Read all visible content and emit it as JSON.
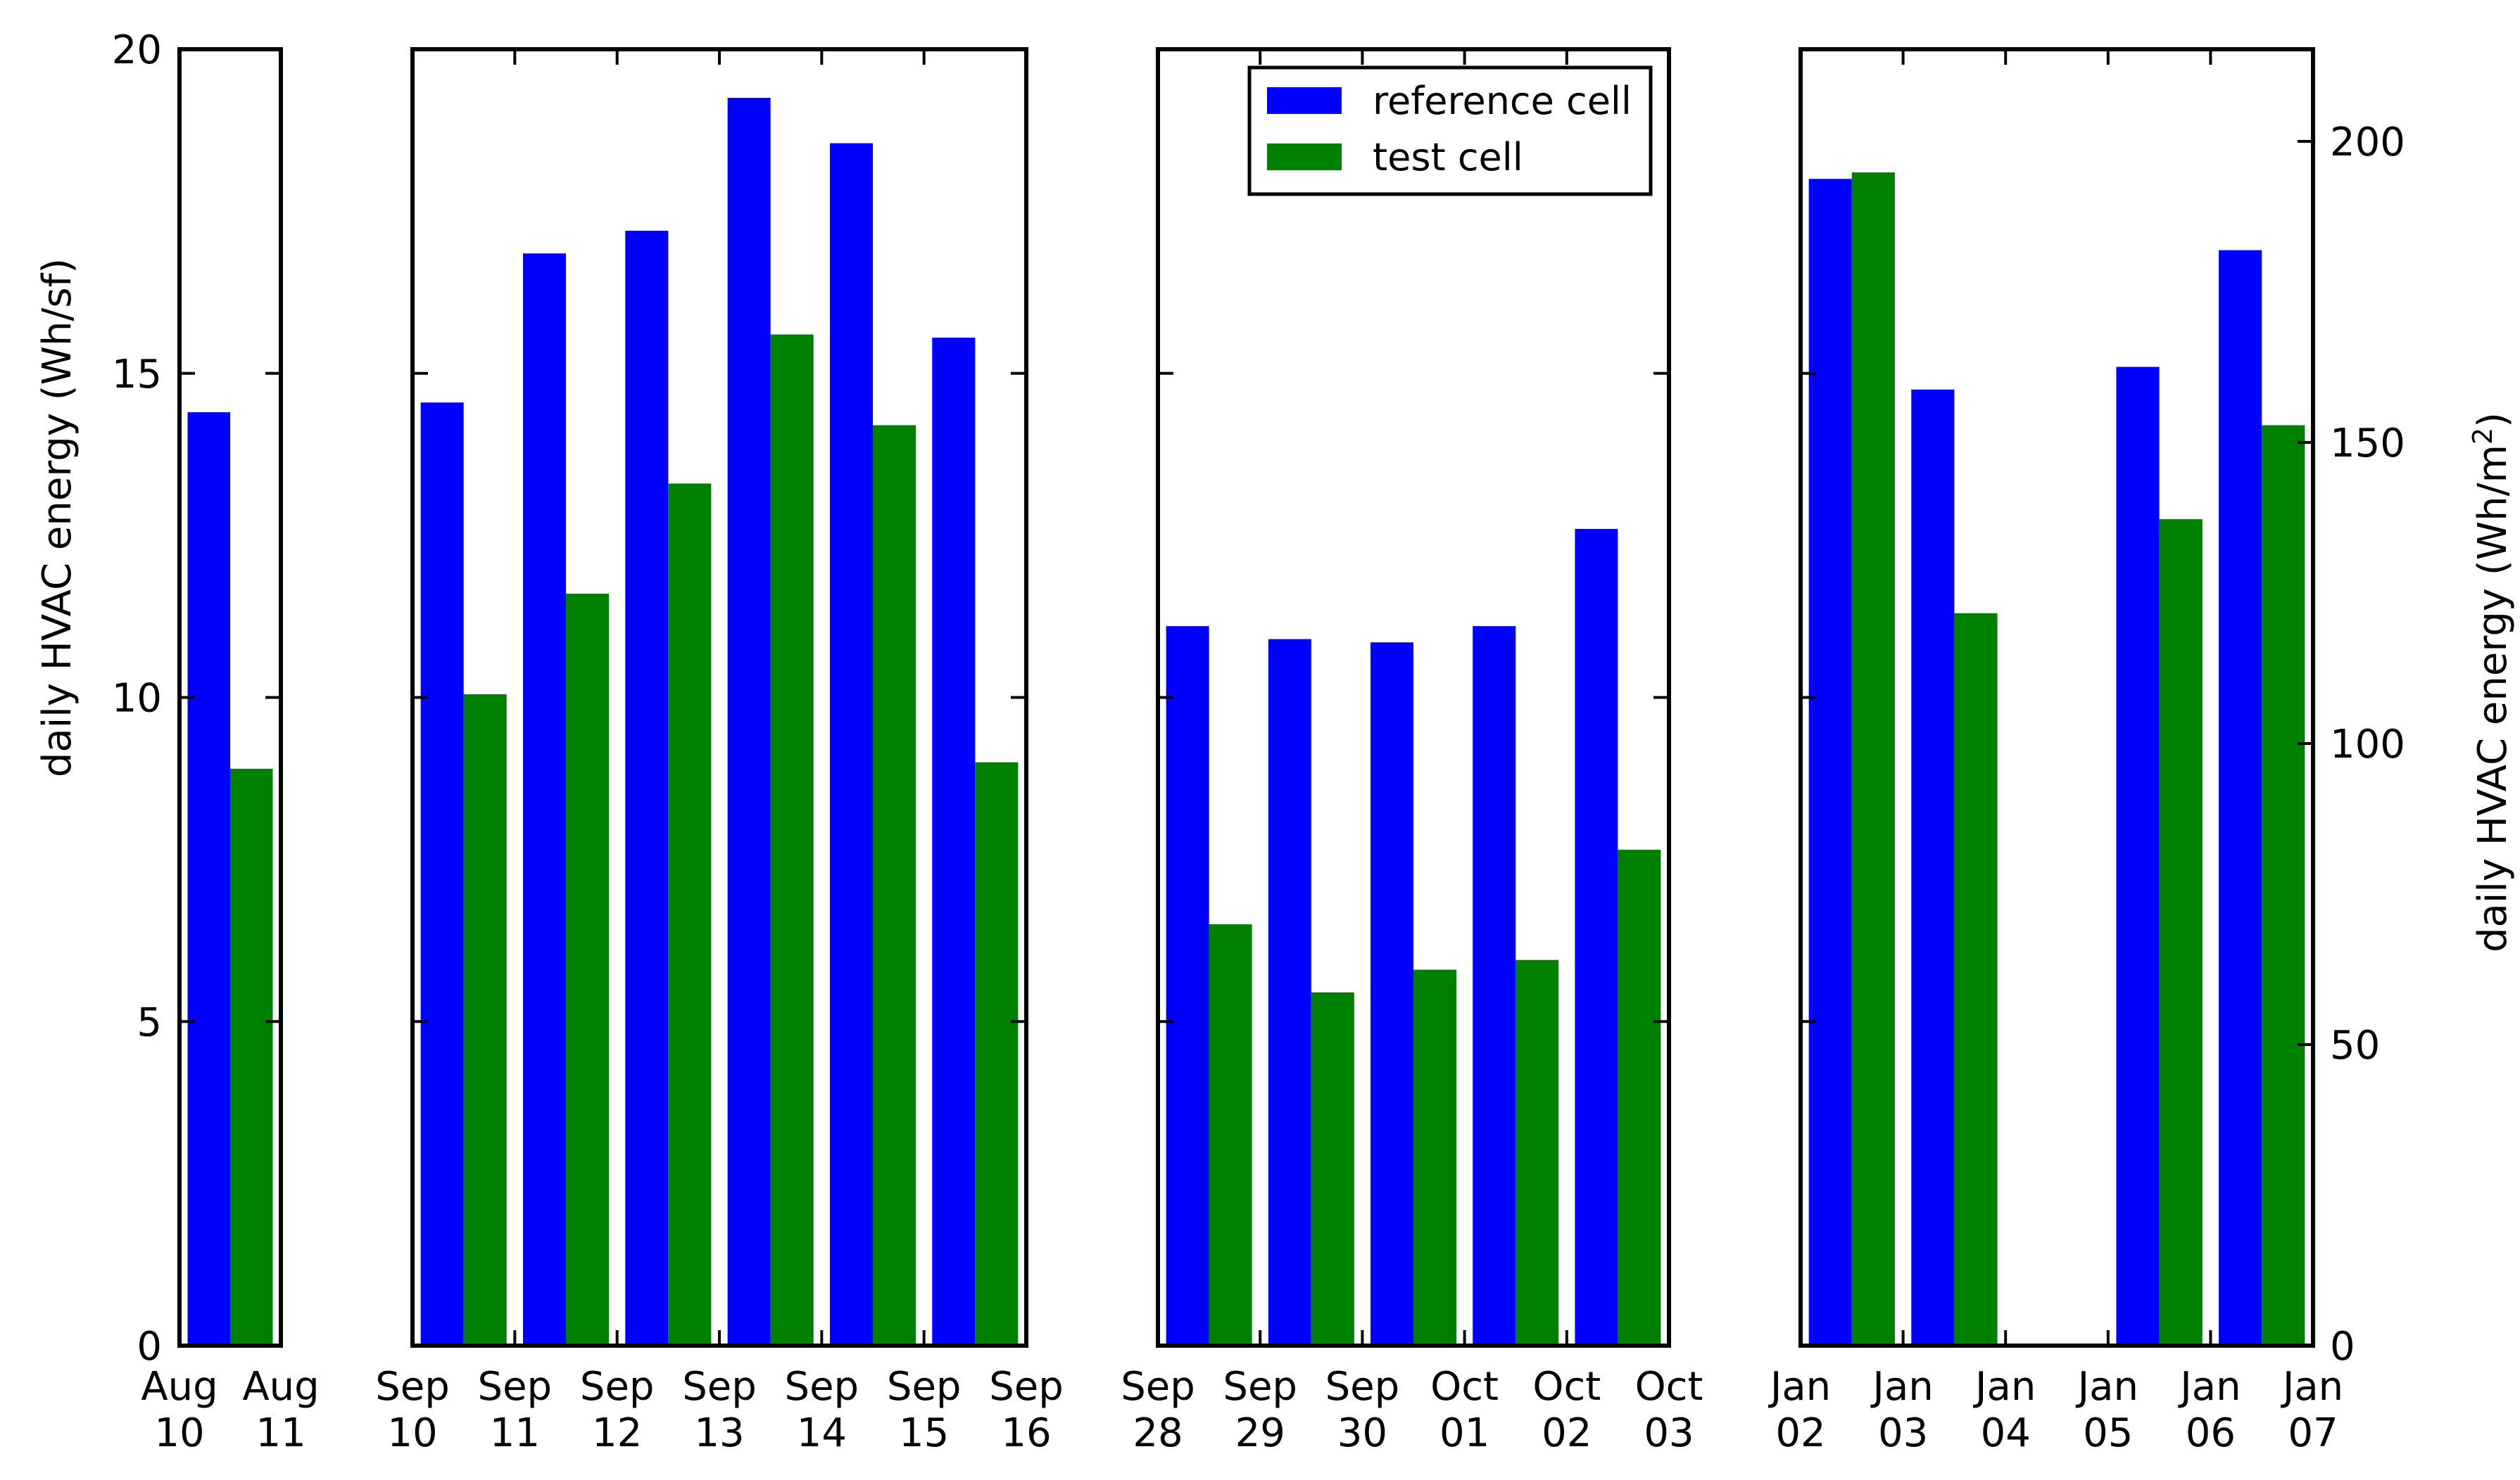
{
  "chart_data": {
    "type": "bar",
    "title": "",
    "ylabel_left": "daily HVAC energy (Wh/sf)",
    "ylabel_right_main": "daily HVAC energy (Wh/m",
    "ylabel_right_sup": "2",
    "ylabel_right_end": ")",
    "ylim_left": [
      0,
      20
    ],
    "yticks_left": [
      0,
      5,
      10,
      15,
      20
    ],
    "ylim_right": [
      0,
      215.3
    ],
    "yticks_right": [
      0,
      50,
      100,
      150,
      200
    ],
    "legend": {
      "position": "top-right of third panel",
      "entries": [
        {
          "name": "reference cell",
          "color": "#0000ff"
        },
        {
          "name": "test cell",
          "color": "#008000"
        }
      ]
    },
    "series_colors": {
      "reference": "#0000ff",
      "test": "#008000"
    },
    "panels": [
      {
        "xticks": [
          [
            "Aug",
            "10"
          ],
          [
            "Aug",
            "11"
          ]
        ],
        "bars": [
          {
            "ref": 14.4,
            "test": 8.9
          }
        ]
      },
      {
        "xticks": [
          [
            "Sep",
            "10"
          ],
          [
            "Sep",
            "11"
          ],
          [
            "Sep",
            "12"
          ],
          [
            "Sep",
            "13"
          ],
          [
            "Sep",
            "14"
          ],
          [
            "Sep",
            "15"
          ],
          [
            "Sep",
            "16"
          ]
        ],
        "bars": [
          {
            "ref": 14.55,
            "test": 10.05
          },
          {
            "ref": 16.85,
            "test": 11.6
          },
          {
            "ref": 17.2,
            "test": 13.3
          },
          {
            "ref": 19.25,
            "test": 15.6
          },
          {
            "ref": 18.55,
            "test": 14.2
          },
          {
            "ref": 15.55,
            "test": 9.0
          }
        ]
      },
      {
        "xticks": [
          [
            "Sep",
            "28"
          ],
          [
            "Sep",
            "29"
          ],
          [
            "Sep",
            "30"
          ],
          [
            "Oct",
            "01"
          ],
          [
            "Oct",
            "02"
          ],
          [
            "Oct",
            "03"
          ]
        ],
        "bars": [
          {
            "ref": 11.1,
            "test": 6.5
          },
          {
            "ref": 10.9,
            "test": 5.45
          },
          {
            "ref": 10.85,
            "test": 5.8
          },
          {
            "ref": 11.1,
            "test": 5.95
          },
          {
            "ref": 12.6,
            "test": 7.65
          }
        ]
      },
      {
        "xticks": [
          [
            "Jan",
            "02"
          ],
          [
            "Jan",
            "03"
          ],
          [
            "Jan",
            "04"
          ],
          [
            "Jan",
            "05"
          ],
          [
            "Jan",
            "06"
          ],
          [
            "Jan",
            "07"
          ]
        ],
        "bars": [
          {
            "ref": 18.0,
            "test": 18.1
          },
          {
            "ref": 14.75,
            "test": 11.3
          },
          {
            "ref": 0,
            "test": 0
          },
          {
            "ref": 15.1,
            "test": 12.75
          },
          {
            "ref": 16.9,
            "test": 14.2
          }
        ]
      }
    ]
  }
}
